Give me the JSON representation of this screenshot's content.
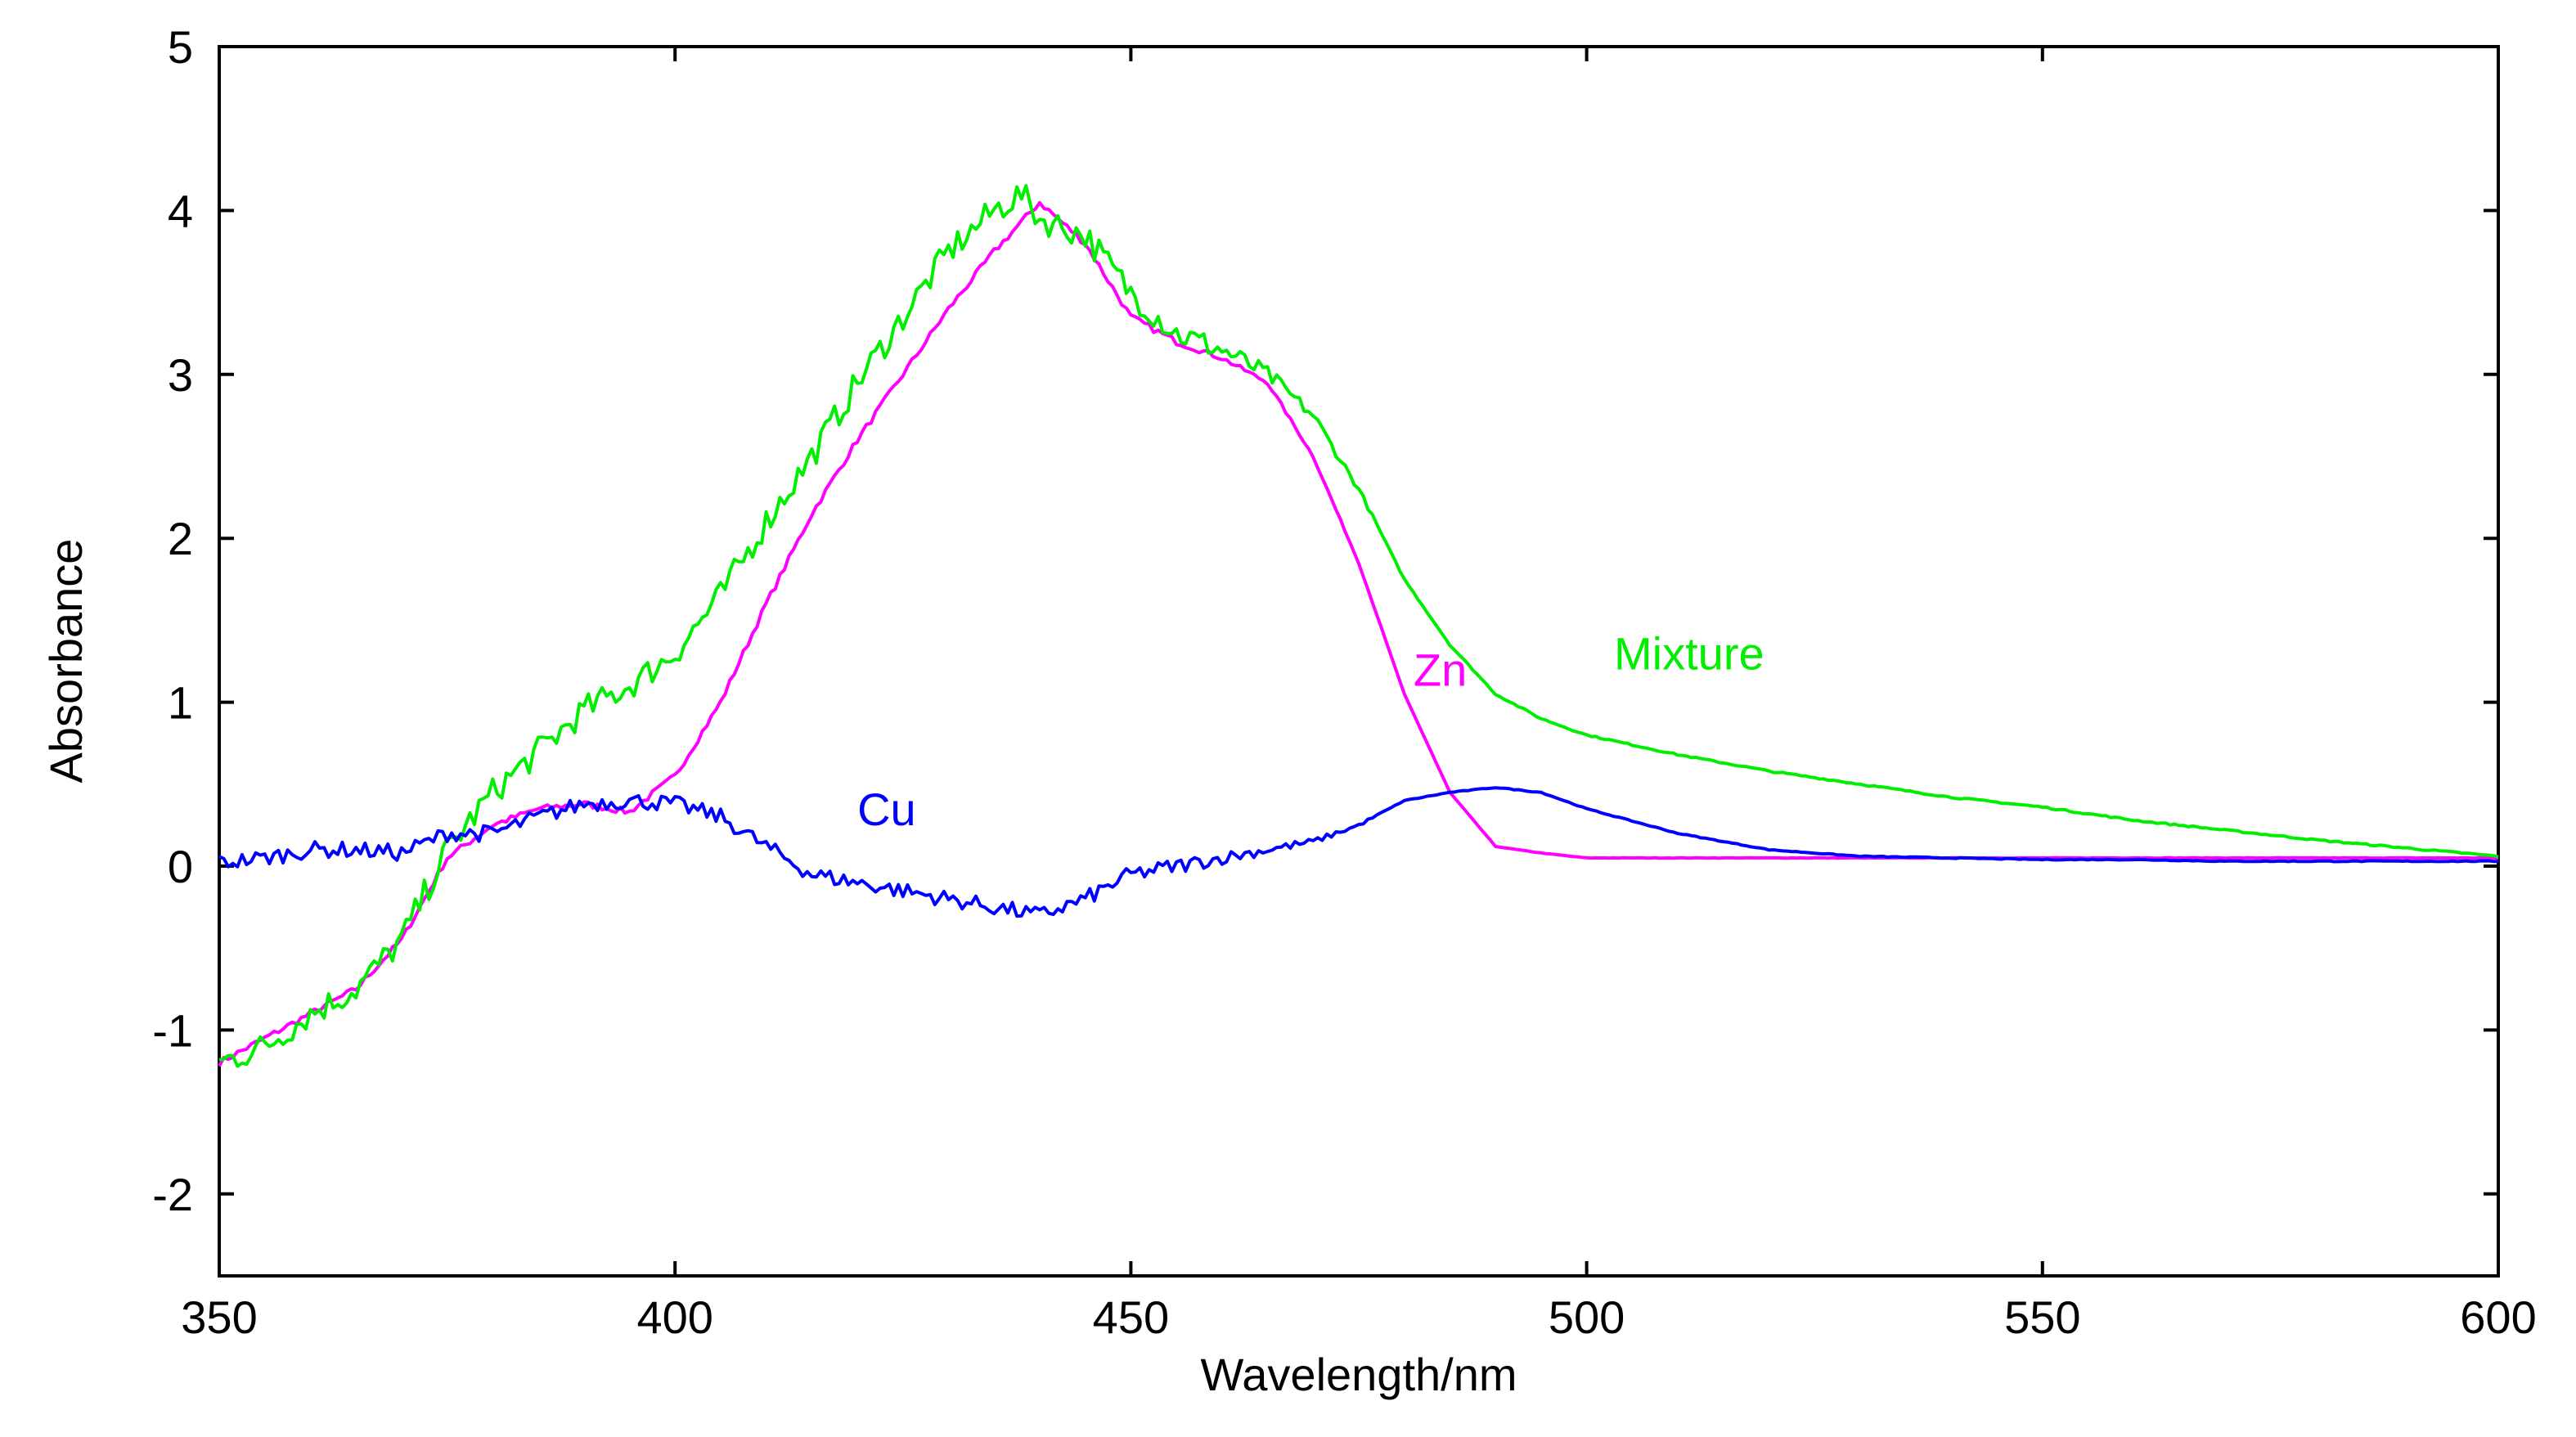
{
  "chart_data": {
    "type": "line",
    "title": "",
    "xlabel": "Wavelength/nm",
    "ylabel": "Absorbance",
    "xlim": [
      350,
      600
    ],
    "ylim": [
      -2.5,
      5
    ],
    "xticks": [
      350,
      400,
      450,
      500,
      550,
      600
    ],
    "yticks": [
      -2,
      -1,
      0,
      1,
      2,
      3,
      4,
      5
    ],
    "xtick_labels": [
      "350",
      "400",
      "450",
      "500",
      "550",
      "600"
    ],
    "ytick_labels": [
      "-2",
      "-1",
      "0",
      "1",
      "2",
      "3",
      "4",
      "5"
    ],
    "grid": false,
    "series": [
      {
        "name": "Mixture",
        "label": "Mixture",
        "color": "#00ee00",
        "label_at": [
          503,
          1.2
        ],
        "noise": 0.09,
        "x": [
          350,
          355,
          360,
          365,
          370,
          375,
          380,
          385,
          390,
          395,
          400,
          405,
          410,
          415,
          420,
          425,
          430,
          435,
          438,
          440,
          445,
          450,
          455,
          460,
          465,
          470,
          475,
          480,
          485,
          490,
          495,
          500,
          510,
          520,
          530,
          540,
          550,
          560,
          570,
          580,
          590,
          600
        ],
        "y": [
          -1.2,
          -1.1,
          -0.9,
          -0.75,
          -0.45,
          0.1,
          0.45,
          0.7,
          0.95,
          1.1,
          1.3,
          1.65,
          2.1,
          2.5,
          2.95,
          3.35,
          3.75,
          4.0,
          4.1,
          3.95,
          3.85,
          3.5,
          3.25,
          3.15,
          3.0,
          2.75,
          2.3,
          1.75,
          1.35,
          1.05,
          0.9,
          0.8,
          0.68,
          0.58,
          0.5,
          0.42,
          0.36,
          0.28,
          0.22,
          0.16,
          0.11,
          0.06
        ]
      },
      {
        "name": "Zn",
        "label": "Zn",
        "color": "#ff00ff",
        "label_at": [
          481,
          1.1
        ],
        "noise": 0.02,
        "x": [
          350,
          355,
          360,
          365,
          370,
          375,
          380,
          385,
          390,
          395,
          400,
          405,
          410,
          415,
          420,
          425,
          430,
          435,
          440,
          445,
          450,
          455,
          460,
          465,
          470,
          475,
          480,
          485,
          490,
          495,
          500,
          510,
          520,
          530,
          540,
          550,
          560,
          570,
          580,
          590,
          600
        ],
        "y": [
          -1.2,
          -1.05,
          -0.9,
          -0.75,
          -0.45,
          0.05,
          0.25,
          0.35,
          0.38,
          0.33,
          0.55,
          1.0,
          1.6,
          2.15,
          2.6,
          3.0,
          3.4,
          3.75,
          4.05,
          3.8,
          3.35,
          3.2,
          3.1,
          2.95,
          2.5,
          1.85,
          1.05,
          0.45,
          0.12,
          0.08,
          0.05,
          0.05,
          0.05,
          0.05,
          0.05,
          0.05,
          0.05,
          0.05,
          0.05,
          0.05,
          0.05
        ]
      },
      {
        "name": "Cu",
        "label": "Cu",
        "color": "#0000ff",
        "label_at": [
          420,
          0.25
        ],
        "noise": 0.05,
        "x": [
          350,
          355,
          360,
          365,
          370,
          375,
          380,
          385,
          390,
          395,
          400,
          405,
          410,
          415,
          420,
          425,
          430,
          435,
          440,
          445,
          450,
          455,
          460,
          465,
          470,
          475,
          480,
          485,
          490,
          495,
          500,
          510,
          520,
          530,
          540,
          550,
          560,
          570,
          580,
          590,
          600
        ],
        "y": [
          0.02,
          0.05,
          0.1,
          0.1,
          0.08,
          0.2,
          0.2,
          0.3,
          0.38,
          0.4,
          0.38,
          0.3,
          0.12,
          -0.05,
          -0.1,
          -0.15,
          -0.2,
          -0.25,
          -0.3,
          -0.2,
          -0.05,
          0.0,
          0.05,
          0.1,
          0.15,
          0.25,
          0.4,
          0.45,
          0.48,
          0.45,
          0.35,
          0.2,
          0.1,
          0.06,
          0.05,
          0.04,
          0.04,
          0.03,
          0.03,
          0.03,
          0.03
        ]
      }
    ]
  }
}
